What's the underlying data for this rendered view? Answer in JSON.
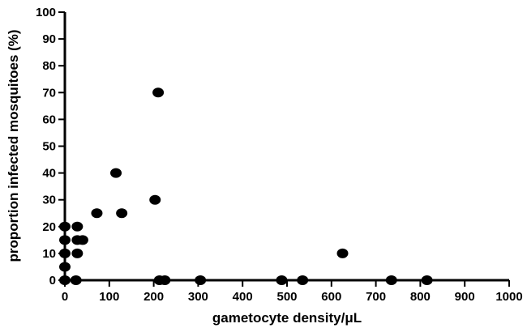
{
  "chart_data": {
    "type": "scatter",
    "title": "",
    "xlabel": "gametocyte density/μL",
    "ylabel": "proportion infected mosquitoes (%)",
    "xlim": [
      0,
      1000
    ],
    "ylim": [
      0,
      100
    ],
    "x_ticks": [
      0,
      100,
      200,
      300,
      400,
      500,
      600,
      700,
      800,
      900,
      1000
    ],
    "y_ticks": [
      0,
      10,
      20,
      30,
      40,
      50,
      60,
      70,
      80,
      90,
      100
    ],
    "grid": false,
    "marker_color": "#000000",
    "points": [
      {
        "x": 0,
        "y": 0
      },
      {
        "x": 0,
        "y": 5
      },
      {
        "x": 0,
        "y": 10
      },
      {
        "x": 0,
        "y": 15
      },
      {
        "x": 0,
        "y": 20
      },
      {
        "x": 25,
        "y": 0
      },
      {
        "x": 28,
        "y": 10
      },
      {
        "x": 28,
        "y": 15
      },
      {
        "x": 28,
        "y": 20
      },
      {
        "x": 40,
        "y": 15
      },
      {
        "x": 72,
        "y": 25
      },
      {
        "x": 115,
        "y": 40
      },
      {
        "x": 128,
        "y": 25
      },
      {
        "x": 203,
        "y": 30
      },
      {
        "x": 210,
        "y": 70
      },
      {
        "x": 213,
        "y": 0
      },
      {
        "x": 225,
        "y": 0
      },
      {
        "x": 305,
        "y": 0
      },
      {
        "x": 488,
        "y": 0
      },
      {
        "x": 535,
        "y": 0
      },
      {
        "x": 625,
        "y": 10
      },
      {
        "x": 735,
        "y": 0
      },
      {
        "x": 815,
        "y": 0
      }
    ]
  }
}
